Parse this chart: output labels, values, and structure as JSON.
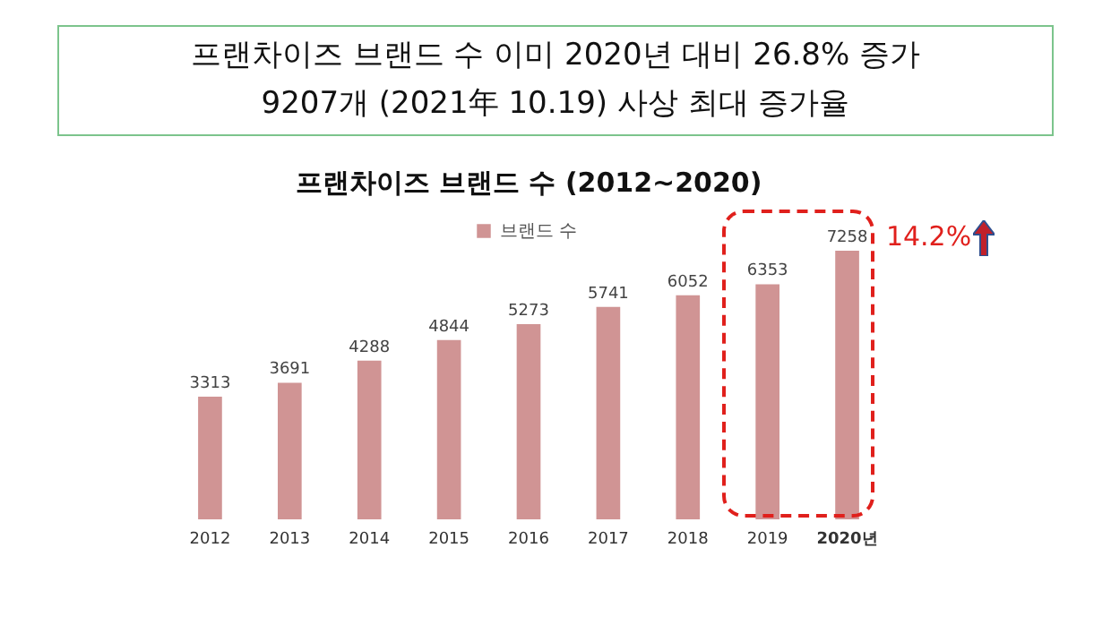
{
  "chart_data": {
    "type": "bar",
    "title": "프랜차이즈 브랜드 수 (2012~2020)",
    "categories": [
      "2012",
      "2013",
      "2014",
      "2015",
      "2016",
      "2017",
      "2018",
      "2019",
      "2020년"
    ],
    "series": [
      {
        "name": "브랜드 수",
        "color": "#d09494",
        "values": [
          3313,
          3691,
          4288,
          4844,
          5273,
          5741,
          6052,
          6353,
          7258
        ]
      }
    ],
    "data_labels": true,
    "legend": "top",
    "grid": false,
    "annotations": [
      "프랜차이즈 브랜드 수 이미 2020년 대비 26.8% 증가",
      "9207개 (2021年 10.19) 사상 최대 증가율",
      "14.2%"
    ]
  }
}
